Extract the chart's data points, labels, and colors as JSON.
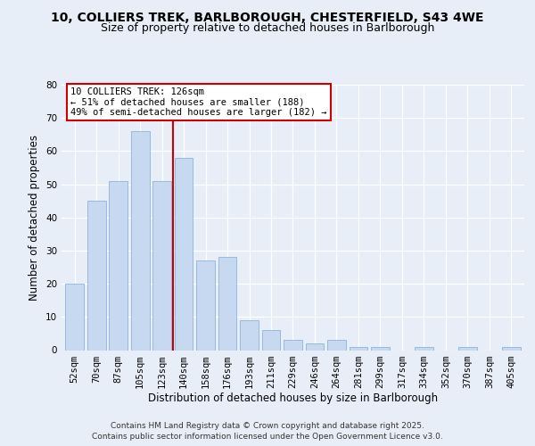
{
  "title1": "10, COLLIERS TREK, BARLBOROUGH, CHESTERFIELD, S43 4WE",
  "title2": "Size of property relative to detached houses in Barlborough",
  "xlabel": "Distribution of detached houses by size in Barlborough",
  "ylabel": "Number of detached properties",
  "bins": [
    "52sqm",
    "70sqm",
    "87sqm",
    "105sqm",
    "123sqm",
    "140sqm",
    "158sqm",
    "176sqm",
    "193sqm",
    "211sqm",
    "229sqm",
    "246sqm",
    "264sqm",
    "281sqm",
    "299sqm",
    "317sqm",
    "334sqm",
    "352sqm",
    "370sqm",
    "387sqm",
    "405sqm"
  ],
  "values": [
    20,
    45,
    51,
    66,
    51,
    58,
    27,
    28,
    9,
    6,
    3,
    2,
    3,
    1,
    1,
    0,
    1,
    0,
    1,
    0,
    1
  ],
  "bar_color": "#c6d9f0",
  "bar_edge_color": "#8db4d9",
  "red_line_x": 4.5,
  "ann_line1": "10 COLLIERS TREK: 126sqm",
  "ann_line2": "← 51% of detached houses are smaller (188)",
  "ann_line3": "49% of semi-detached houses are larger (182) →",
  "annotation_box_color": "#ffffff",
  "annotation_box_edge_color": "#cc0000",
  "red_line_color": "#cc0000",
  "ylim": [
    0,
    80
  ],
  "yticks": [
    0,
    10,
    20,
    30,
    40,
    50,
    60,
    70,
    80
  ],
  "background_color": "#e8eef8",
  "plot_bg_color": "#e8eef8",
  "footer1": "Contains HM Land Registry data © Crown copyright and database right 2025.",
  "footer2": "Contains public sector information licensed under the Open Government Licence v3.0.",
  "title_fontsize": 10,
  "subtitle_fontsize": 9,
  "axis_label_fontsize": 8.5,
  "tick_fontsize": 7.5,
  "ann_fontsize": 7.5,
  "footer_fontsize": 6.5
}
